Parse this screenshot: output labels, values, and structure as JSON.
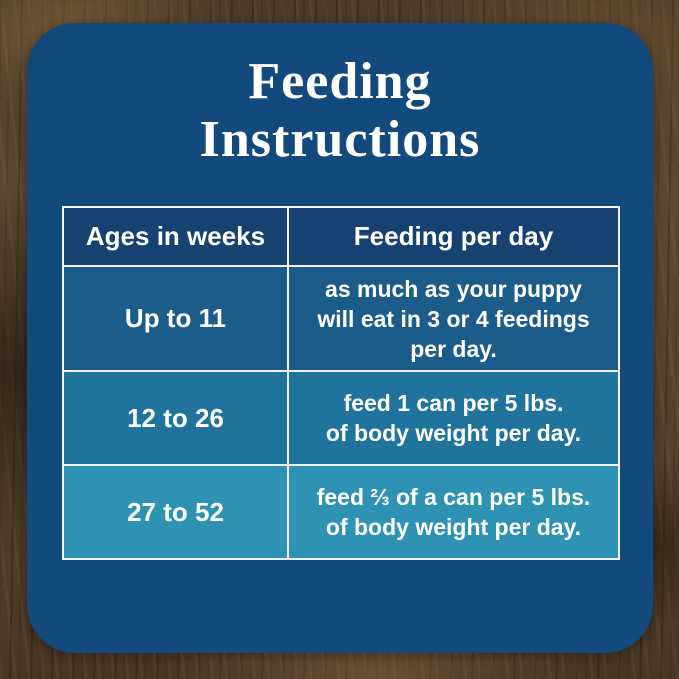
{
  "title": {
    "line1": "Feeding",
    "line2": "Instructions"
  },
  "table": {
    "headers": [
      "Ages in weeks",
      "Feeding per day"
    ],
    "rows": [
      {
        "age": "Up to 11",
        "feeding_lines": [
          "as much as your puppy",
          "will eat in 3 or 4 feedings",
          "per day."
        ]
      },
      {
        "age": "12 to 26",
        "feeding_lines": [
          "feed 1 can per 5 lbs.",
          "of body weight per day."
        ]
      },
      {
        "age": "27 to 52",
        "feeding_lines": [
          "feed ⅔ of a can per 5 lbs.",
          "of body weight per day."
        ]
      }
    ]
  },
  "colors": {
    "card_navy": "#124a7d",
    "header_navy": "#164170",
    "row1_blue": "#1b5c8b",
    "row2_blue": "#20739d",
    "row3_teal": "#2d92b4",
    "border_white": "#f2f4f4",
    "text_white": "#ffffff",
    "wood_brown": "#55412c"
  }
}
